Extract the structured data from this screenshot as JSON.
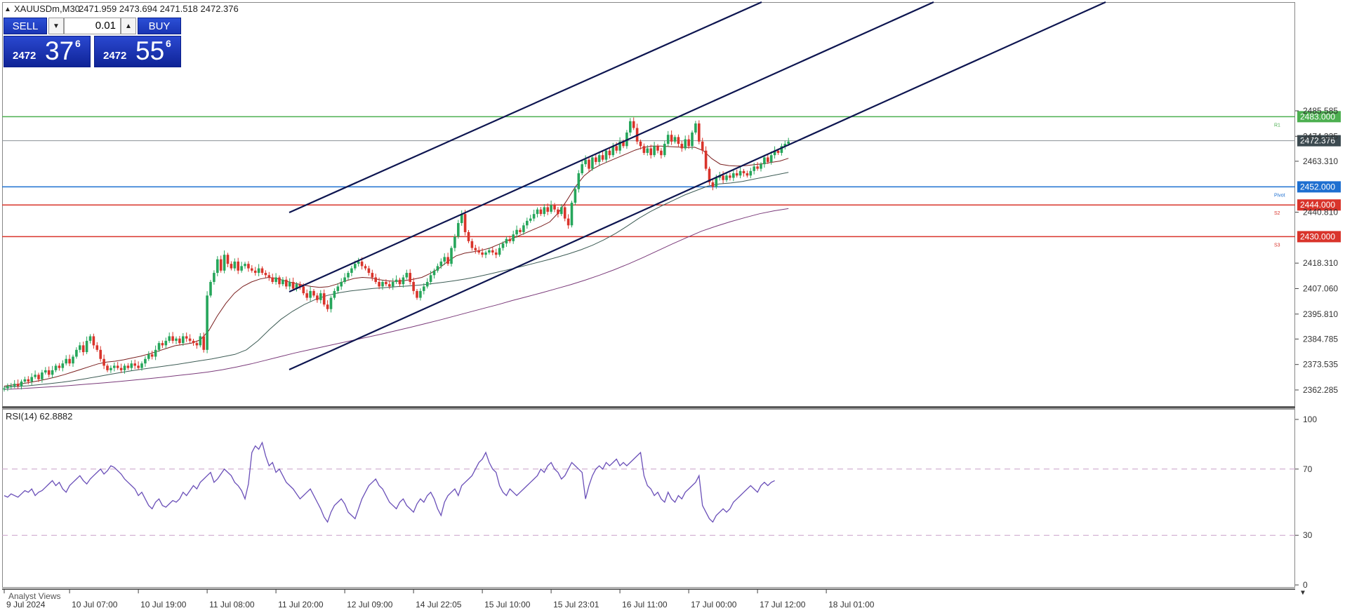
{
  "header": {
    "arrow": "▲",
    "symbol_tf": "XAUUSDm,M30",
    "ohlc": "2471.959 2473.694 2471.518 2472.376"
  },
  "trade_panel": {
    "sell_label": "SELL",
    "buy_label": "BUY",
    "lot_value": "0.01",
    "spin_down_icon": "▼",
    "spin_up_icon": "▲",
    "bid": {
      "small": "2472",
      "big": "37",
      "sup": "6"
    },
    "ask": {
      "small": "2472",
      "big": "55",
      "sup": "6"
    }
  },
  "price_axis": {
    "ticks": [
      {
        "label": "2485.585",
        "v": 2485.585
      },
      {
        "label": "2474.335",
        "v": 2474.335
      },
      {
        "label": "2463.310",
        "v": 2463.31
      },
      {
        "label": "2440.810",
        "v": 2440.81
      },
      {
        "label": "2418.310",
        "v": 2418.31
      },
      {
        "label": "2407.060",
        "v": 2407.06
      },
      {
        "label": "2395.810",
        "v": 2395.81
      },
      {
        "label": "2384.785",
        "v": 2384.785
      },
      {
        "label": "2373.535",
        "v": 2373.535
      },
      {
        "label": "2362.285",
        "v": 2362.285
      }
    ],
    "current": {
      "label": "2472.376",
      "v": 2472.376,
      "color": "#3c4a50"
    }
  },
  "levels": [
    {
      "name": "r1-level",
      "label": "2483.000",
      "v": 2483.0,
      "color": "#4caf50",
      "tag": "R1"
    },
    {
      "name": "pivot-level",
      "label": "2452.000",
      "v": 2452.0,
      "color": "#1e6fd0",
      "tag": "Pivot"
    },
    {
      "name": "s2-level",
      "label": "2444.000",
      "v": 2444.0,
      "color": "#d9342b",
      "tag": "S2"
    },
    {
      "name": "s3-level",
      "label": "2430.000",
      "v": 2430.0,
      "color": "#d9342b",
      "tag": "S3"
    }
  ],
  "rsi": {
    "label": "RSI(14) 62.8882",
    "ticks": [
      {
        "label": "100",
        "v": 100
      },
      {
        "label": "70",
        "v": 70
      },
      {
        "label": "30",
        "v": 30
      },
      {
        "label": "0",
        "v": 0
      }
    ],
    "color": "#6a4fb8",
    "values": [
      54,
      53,
      55,
      54,
      53,
      55,
      57,
      56,
      58,
      54,
      56,
      57,
      59,
      61,
      63,
      60,
      62,
      58,
      56,
      60,
      62,
      64,
      66,
      63,
      61,
      64,
      66,
      68,
      70,
      67,
      69,
      72,
      71,
      69,
      67,
      64,
      62,
      60,
      58,
      54,
      56,
      52,
      48,
      46,
      50,
      52,
      48,
      47,
      49,
      51,
      50,
      52,
      56,
      54,
      57,
      60,
      58,
      62,
      64,
      66,
      68,
      62,
      64,
      67,
      70,
      68,
      66,
      62,
      60,
      57,
      52,
      61,
      80,
      84,
      82,
      86,
      78,
      72,
      74,
      68,
      70,
      66,
      62,
      60,
      58,
      55,
      52,
      54,
      56,
      58,
      54,
      50,
      46,
      41,
      38,
      44,
      48,
      50,
      52,
      49,
      44,
      42,
      40,
      46,
      52,
      56,
      60,
      62,
      64,
      60,
      58,
      54,
      50,
      48,
      46,
      50,
      52,
      48,
      46,
      44,
      49,
      52,
      50,
      54,
      56,
      52,
      46,
      42,
      50,
      54,
      56,
      58,
      54,
      60,
      62,
      64,
      66,
      70,
      74,
      76,
      80,
      74,
      70,
      68,
      60,
      56,
      54,
      58,
      56,
      54,
      56,
      58,
      60,
      62,
      64,
      66,
      70,
      68,
      72,
      74,
      70,
      68,
      64,
      66,
      70,
      74,
      72,
      70,
      68,
      52,
      60,
      66,
      70,
      72,
      70,
      74,
      72,
      74,
      76,
      72,
      74,
      72,
      74,
      76,
      78,
      80,
      66,
      60,
      58,
      54,
      56,
      52,
      50,
      56,
      52,
      50,
      54,
      52,
      56,
      58,
      60,
      62,
      66,
      48,
      44,
      40,
      38,
      42,
      44,
      46,
      44,
      46,
      50,
      52,
      54,
      56,
      58,
      60,
      58,
      56,
      60,
      62,
      60,
      62,
      63
    ],
    "levels": [
      70,
      30
    ]
  },
  "time_axis": {
    "labels": [
      {
        "label": "9 Jul 2024",
        "i": 0
      },
      {
        "label": "10 Jul 07:00",
        "i": 19
      },
      {
        "label": "10 Jul 19:00",
        "i": 39
      },
      {
        "label": "11 Jul 08:00",
        "i": 59
      },
      {
        "label": "11 Jul 20:00",
        "i": 79
      },
      {
        "label": "12 Jul 09:00",
        "i": 99
      },
      {
        "label": "14 Jul 22:05",
        "i": 119
      },
      {
        "label": "15 Jul 10:00",
        "i": 139
      },
      {
        "label": "15 Jul 23:01",
        "i": 159
      },
      {
        "label": "16 Jul 11:00",
        "i": 179
      },
      {
        "label": "17 Jul 00:00",
        "i": 199
      },
      {
        "label": "17 Jul 12:00",
        "i": 219
      },
      {
        "label": "18 Jul 01:00",
        "i": 239
      }
    ]
  },
  "bottom_tab": "Analyst Views",
  "chart_data": {
    "type": "line",
    "close": [
      2363,
      2364,
      2364,
      2365,
      2364,
      2366,
      2367,
      2366,
      2368,
      2369,
      2367,
      2370,
      2371,
      2369,
      2371,
      2373,
      2372,
      2374,
      2376,
      2374,
      2377,
      2380,
      2382,
      2379,
      2384,
      2386,
      2382,
      2380,
      2376,
      2373,
      2371,
      2372,
      2373,
      2372,
      2371,
      2373,
      2372,
      2374,
      2373,
      2372,
      2374,
      2376,
      2378,
      2377,
      2380,
      2383,
      2382,
      2384,
      2386,
      2384,
      2385,
      2383,
      2386,
      2385,
      2384,
      2383,
      2382,
      2386,
      2380,
      2404,
      2410,
      2414,
      2420,
      2415,
      2422,
      2418,
      2416,
      2419,
      2415,
      2417,
      2418,
      2416,
      2415,
      2414,
      2416,
      2414,
      2413,
      2412,
      2410,
      2412,
      2409,
      2411,
      2408,
      2410,
      2407,
      2409,
      2408,
      2405,
      2403,
      2406,
      2404,
      2402,
      2405,
      2400,
      2398,
      2403,
      2406,
      2408,
      2410,
      2412,
      2414,
      2416,
      2418,
      2419,
      2417,
      2416,
      2414,
      2412,
      2410,
      2408,
      2410,
      2409,
      2408,
      2410,
      2411,
      2409,
      2412,
      2414,
      2410,
      2406,
      2403,
      2406,
      2408,
      2410,
      2413,
      2415,
      2417,
      2419,
      2421,
      2418,
      2425,
      2430,
      2436,
      2440,
      2432,
      2428,
      2425,
      2424,
      2423,
      2422,
      2423,
      2424,
      2423,
      2422,
      2425,
      2427,
      2429,
      2428,
      2431,
      2433,
      2432,
      2435,
      2437,
      2438,
      2440,
      2442,
      2440,
      2443,
      2441,
      2444,
      2442,
      2440,
      2443,
      2438,
      2435,
      2445,
      2451,
      2458,
      2462,
      2464,
      2460,
      2465,
      2463,
      2466,
      2464,
      2468,
      2466,
      2470,
      2468,
      2472,
      2470,
      2476,
      2481,
      2478,
      2472,
      2470,
      2467,
      2469,
      2466,
      2470,
      2468,
      2466,
      2471,
      2475,
      2472,
      2474,
      2471,
      2469,
      2473,
      2470,
      2476,
      2480,
      2472,
      2468,
      2460,
      2454,
      2452,
      2456,
      2457,
      2455,
      2457,
      2456,
      2458,
      2457,
      2459,
      2458,
      2457,
      2459,
      2461,
      2460,
      2462,
      2465,
      2463,
      2466,
      2468,
      2467,
      2470,
      2471,
      2472
    ],
    "ma1": [
      2364,
      2364.5,
      2365,
      2365.6,
      2366.3,
      2367.1,
      2368,
      2369,
      2370.2,
      2371.4,
      2372.6,
      2373.8,
      2374.6,
      2375,
      2375.6,
      2376.4,
      2377.2,
      2378.2,
      2379.4,
      2380.6,
      2381.8,
      2382.4,
      2383,
      2384.4,
      2388.5,
      2395,
      2400.5,
      2405,
      2408,
      2410,
      2411.3,
      2412,
      2411.5,
      2410.4,
      2409.5,
      2408.7,
      2408,
      2407.6,
      2407.9,
      2409,
      2410.4,
      2411.5,
      2412,
      2411.8,
      2411,
      2410.5,
      2410.2,
      2410.6,
      2411.2,
      2412,
      2413.8,
      2416,
      2419,
      2421.5,
      2422.7,
      2423.3,
      2424,
      2425,
      2426.6,
      2428.2,
      2429.8,
      2431.4,
      2433,
      2434.6,
      2436.5,
      2440.5,
      2446,
      2452,
      2456.8,
      2459.8,
      2461.8,
      2463.4,
      2465,
      2466.6,
      2468.2,
      2469.4,
      2470,
      2470,
      2469.8,
      2469.6,
      2469.4,
      2469.5,
      2468,
      2464.5,
      2462,
      2461.4,
      2461.2,
      2461.4,
      2461.8,
      2462.2,
      2462.8,
      2463.4,
      2464.6
    ],
    "ma2": [
      2363.5,
      2363.8,
      2364.1,
      2364.6,
      2365.1,
      2365.7,
      2366.4,
      2367.2,
      2368.1,
      2369,
      2369.9,
      2370.7,
      2371.5,
      2372.2,
      2372.9,
      2373.6,
      2374.4,
      2375.2,
      2376,
      2377,
      2378,
      2380,
      2384,
      2389,
      2393.5,
      2397,
      2400,
      2402.3,
      2404,
      2405.2,
      2406,
      2406.6,
      2407.1,
      2407.5,
      2407.9,
      2408.2,
      2408.6,
      2409.2,
      2409.8,
      2410.5,
      2411.3,
      2412.3,
      2413.4,
      2414.6,
      2415.8,
      2417,
      2418.3,
      2419.6,
      2421,
      2422.5,
      2424.2,
      2426.2,
      2428.6,
      2431.4,
      2434.6,
      2438,
      2441,
      2443.6,
      2446,
      2448.4,
      2450.4,
      2452.3,
      2453.3,
      2453.7,
      2454.4,
      2455.4,
      2456.4,
      2457.4,
      2458.4
    ],
    "ma3": [
      2362.5,
      2362.8,
      2363.2,
      2363.6,
      2364,
      2364.5,
      2365,
      2365.5,
      2366.1,
      2366.7,
      2367.3,
      2368,
      2368.7,
      2369.4,
      2370.2,
      2371.2,
      2372.4,
      2373.8,
      2375.4,
      2377,
      2378.6,
      2380,
      2381.4,
      2382.8,
      2384.2,
      2385.6,
      2387,
      2388.5,
      2390,
      2391.6,
      2393.2,
      2394.9,
      2396.6,
      2398.3,
      2400,
      2401.8,
      2403.5,
      2405.2,
      2407,
      2408.8,
      2410.8,
      2413,
      2415.4,
      2418,
      2420.8,
      2423.8,
      2426.8,
      2429.6,
      2432.4,
      2434.6,
      2436.6,
      2438.4,
      2440.1,
      2441.4,
      2442.4
    ]
  }
}
